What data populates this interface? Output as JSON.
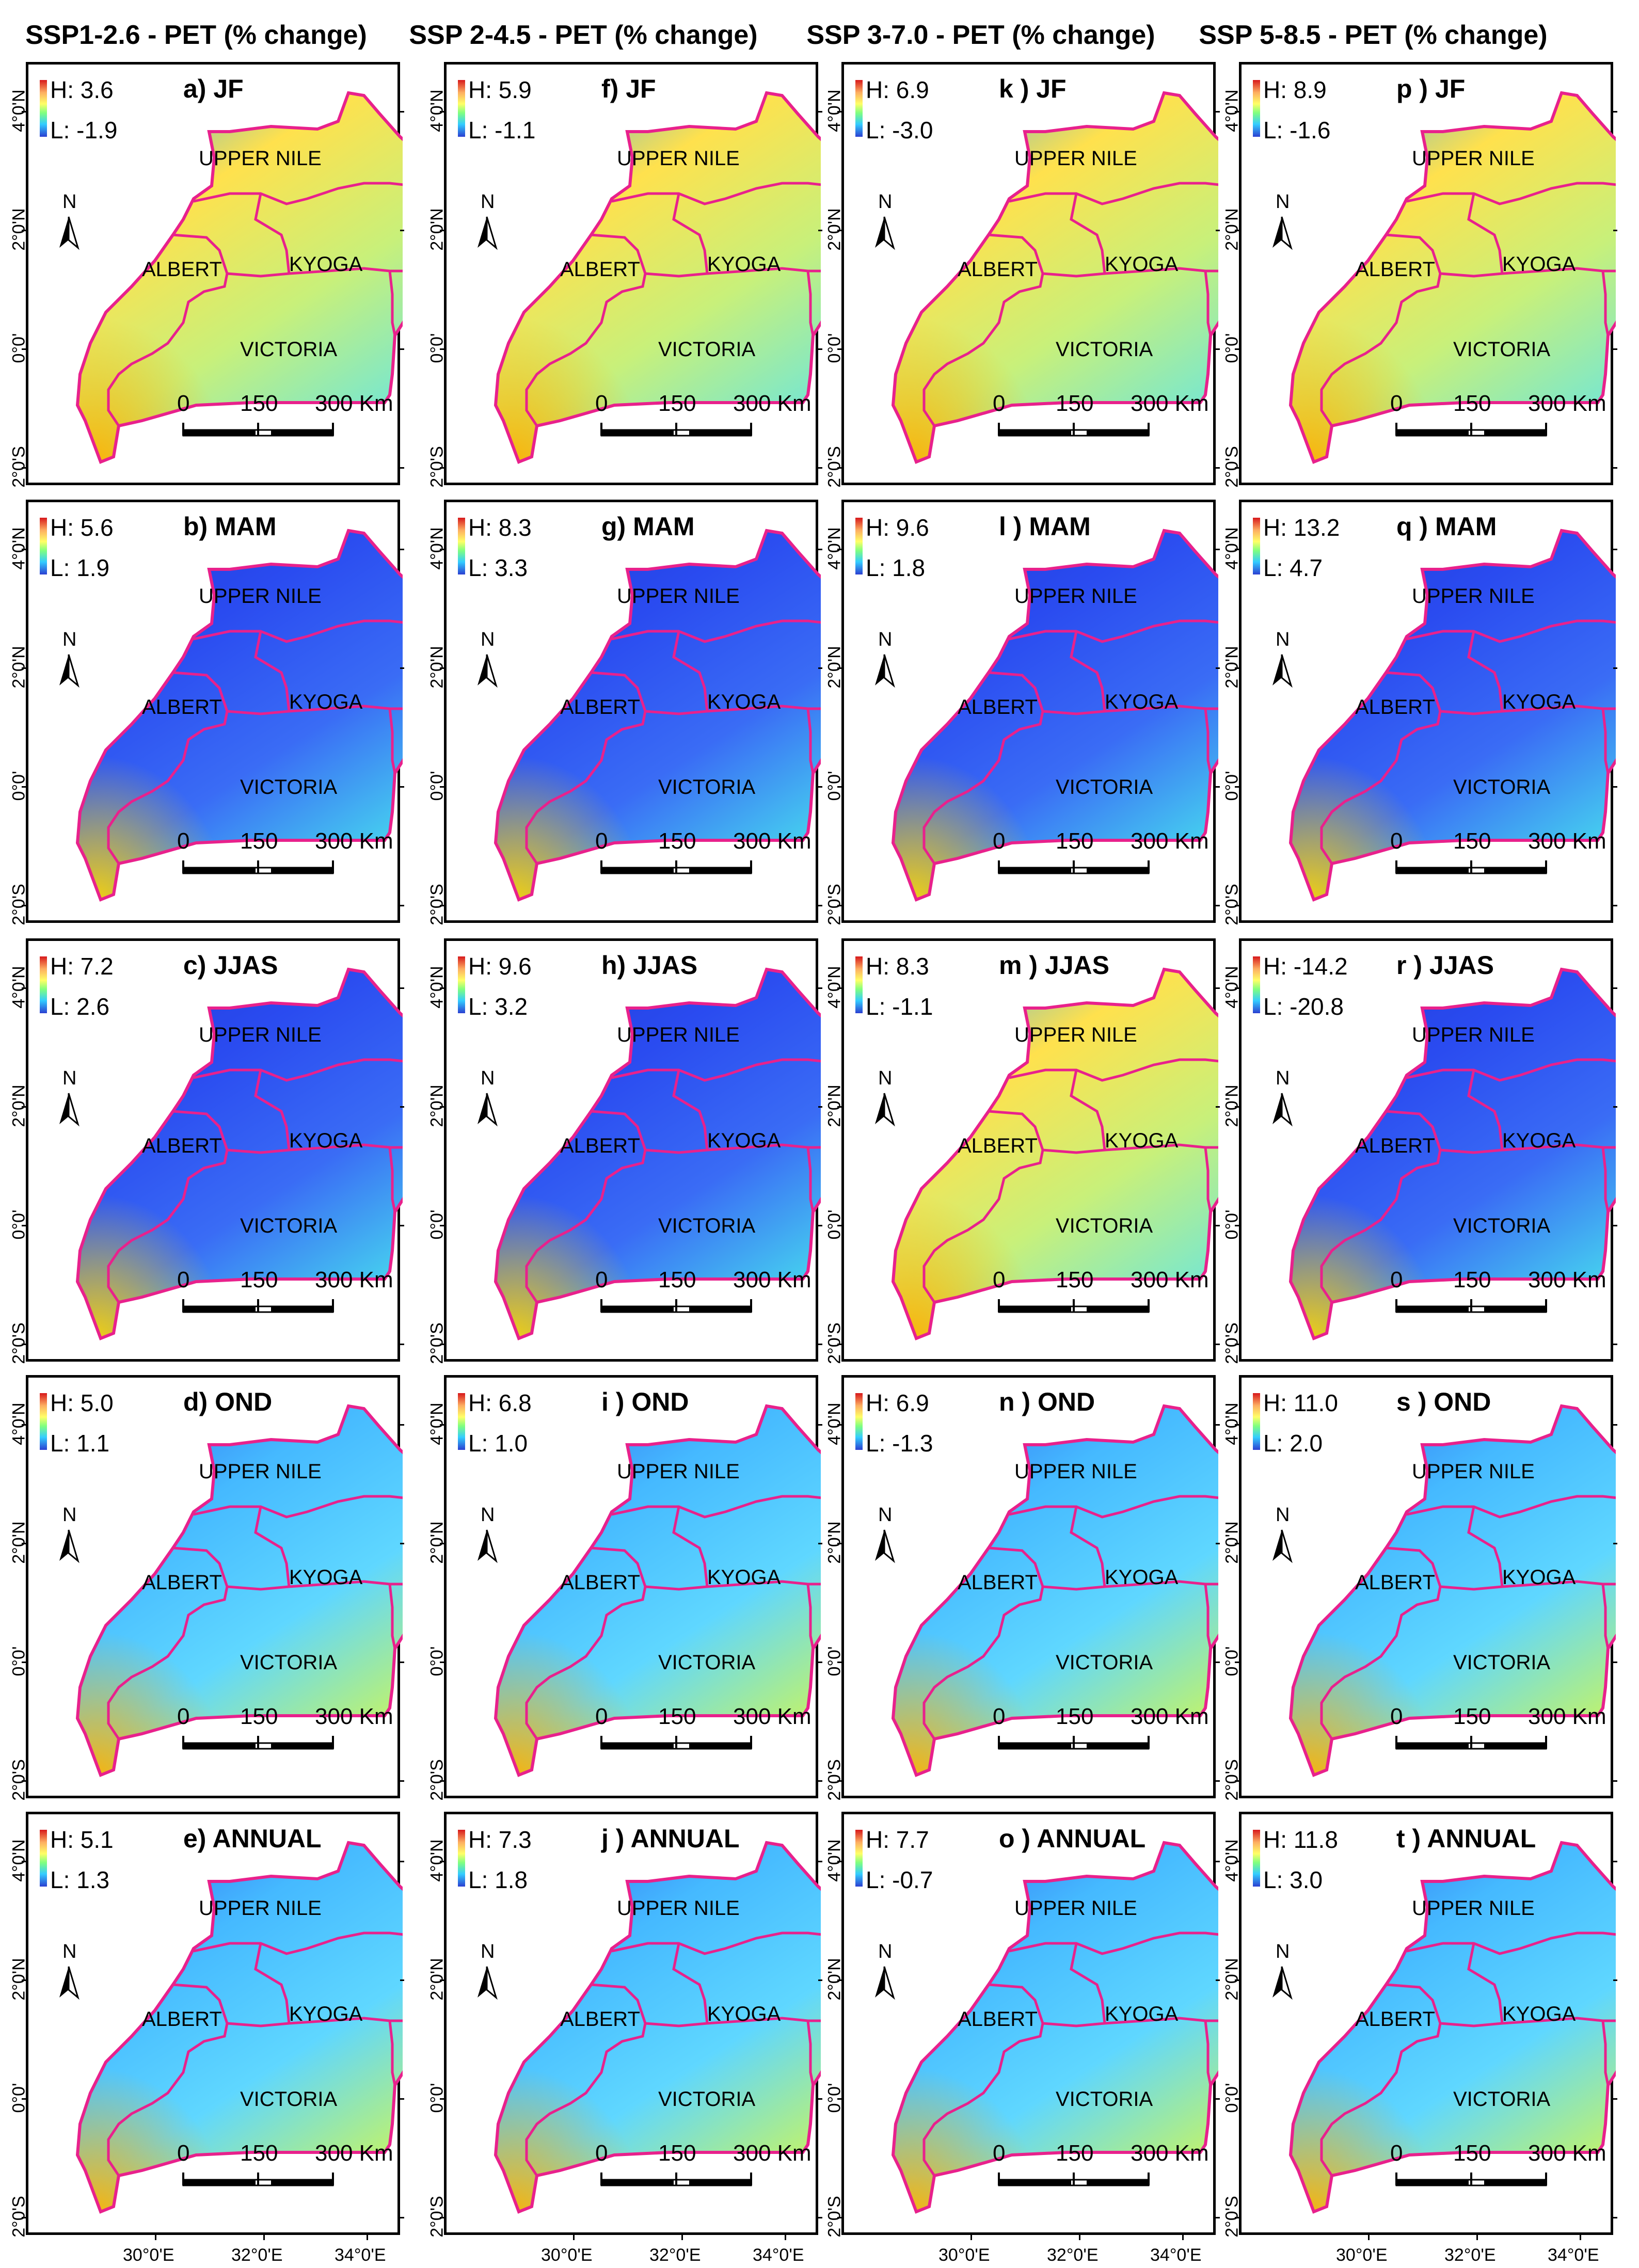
{
  "figure": {
    "columns": [
      "SSP1-2.6 - PET (% change)",
      "SSP 2-4.5 - PET (% change)",
      "SSP 3-7.0 - PET (% change)",
      "SSP 5-8.5 - PET (% change)"
    ],
    "regions": [
      "UPPER NILE",
      "ALBERT",
      "KYOGA",
      "VICTORIA"
    ],
    "scale": {
      "v0": "0",
      "v1": "150",
      "v2": "300 Km"
    },
    "north": "N",
    "lat_labels": [
      "4°0'N",
      "2°0'N",
      "0°0'",
      "2°0'S"
    ],
    "lon_labels": [
      "30°0'E",
      "32°0'E",
      "34°0'E"
    ],
    "colors": {
      "boundary": "#e8218c",
      "high": "#d7191c",
      "low": "#2b3fd1"
    }
  },
  "panels": [
    {
      "title": "a) JF",
      "high": "H: 3.6",
      "low": "L: -1.9",
      "theme": "warm"
    },
    {
      "title": "b) MAM",
      "high": "H: 5.6",
      "low": "L: 1.9",
      "theme": "cool"
    },
    {
      "title": "c) JJAS",
      "high": "H: 7.2",
      "low": "L: 2.6",
      "theme": "cool"
    },
    {
      "title": "d) OND",
      "high": "H: 5.0",
      "low": "L: 1.1",
      "theme": "mid"
    },
    {
      "title": "e) ANNUAL",
      "high": "H: 5.1",
      "low": "L: 1.3",
      "theme": "mid"
    },
    {
      "title": "f) JF",
      "high": "H: 5.9",
      "low": "L: -1.1",
      "theme": "warm"
    },
    {
      "title": "g) MAM",
      "high": "H: 8.3",
      "low": "L: 3.3",
      "theme": "cool"
    },
    {
      "title": "h) JJAS",
      "high": "H: 9.6",
      "low": "L: 3.2",
      "theme": "cool"
    },
    {
      "title": "i ) OND",
      "high": "H: 6.8",
      "low": "L: 1.0",
      "theme": "mid"
    },
    {
      "title": "j ) ANNUAL",
      "high": "H: 7.3",
      "low": "L: 1.8",
      "theme": "mid"
    },
    {
      "title": "k ) JF",
      "high": "H: 6.9",
      "low": "L: -3.0",
      "theme": "warm"
    },
    {
      "title": "l ) MAM",
      "high": "H: 9.6",
      "low": "L: 1.8",
      "theme": "cool"
    },
    {
      "title": "m ) JJAS",
      "high": "H: 8.3",
      "low": "L: -1.1",
      "theme": "warm"
    },
    {
      "title": "n ) OND",
      "high": "H: 6.9",
      "low": "L: -1.3",
      "theme": "mid"
    },
    {
      "title": "o ) ANNUAL",
      "high": "H: 7.7",
      "low": "L: -0.7",
      "theme": "mid"
    },
    {
      "title": "p ) JF",
      "high": "H: 8.9",
      "low": "L: -1.6",
      "theme": "warm"
    },
    {
      "title": "q ) MAM",
      "high": "H: 13.2",
      "low": "L: 4.7",
      "theme": "cool"
    },
    {
      "title": "r ) JJAS",
      "high": "H: -14.2",
      "low": "L: -20.8",
      "theme": "cool"
    },
    {
      "title": "s ) OND",
      "high": "H: 11.0",
      "low": "L: 2.0",
      "theme": "mid"
    },
    {
      "title": "t ) ANNUAL",
      "high": "H: 11.8",
      "low": "L: 3.0",
      "theme": "mid"
    }
  ]
}
